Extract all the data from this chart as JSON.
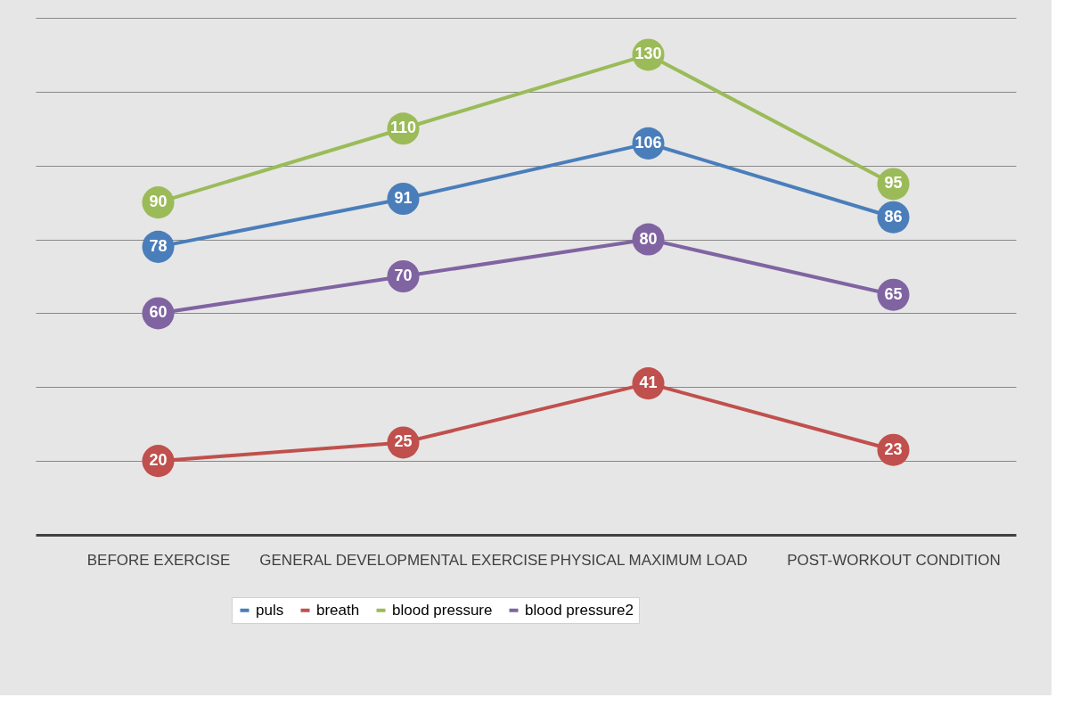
{
  "chart_data": {
    "type": "line",
    "categories": [
      "BEFORE EXERCISE",
      "GENERAL DEVELOPMENTAL EXERCISE",
      "PHYSICAL MAXIMUM LOAD",
      "POST-WORKOUT CONDITION"
    ],
    "series": [
      {
        "name": "puls",
        "color": "#4a7ebb",
        "values": [
          78,
          91,
          106,
          86
        ]
      },
      {
        "name": "breath",
        "color": "#c0504d",
        "values": [
          20,
          25,
          41,
          23
        ]
      },
      {
        "name": "blood pressure",
        "color": "#9bbb59",
        "values": [
          90,
          110,
          130,
          95
        ]
      },
      {
        "name": "blood pressure2",
        "color": "#8064a2",
        "values": [
          60,
          70,
          80,
          65
        ]
      }
    ],
    "ylim": [
      0,
      140
    ],
    "yticks": [
      {
        "value": 20,
        "label": null
      },
      {
        "value": 40,
        "label": null
      },
      {
        "value": 60,
        "label": null
      },
      {
        "value": 80,
        "label": null
      },
      {
        "value": 100,
        "label": null
      },
      {
        "value": 120,
        "label": null
      },
      {
        "value": 140,
        "label": null
      }
    ],
    "tick_labels": "x",
    "grid": "y",
    "legend": "bottom",
    "marker": "circle",
    "line_style": "solid",
    "data_labels": true
  }
}
